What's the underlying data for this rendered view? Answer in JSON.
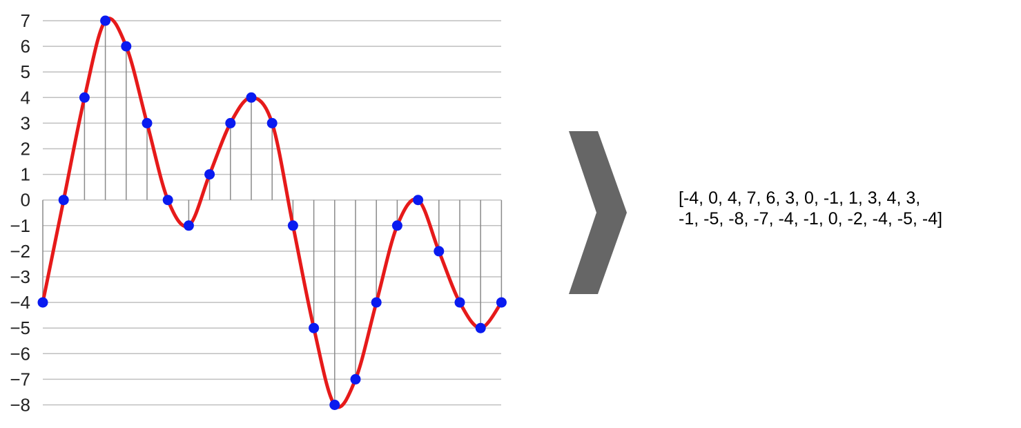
{
  "chart_data": {
    "type": "line",
    "y_ticks": [
      "7",
      "6",
      "5",
      "4",
      "3",
      "2",
      "1",
      "0",
      "−1",
      "−2",
      "−3",
      "−4",
      "−5",
      "−6",
      "−7",
      "−8"
    ],
    "ylim": [
      -8,
      7
    ],
    "grid": true,
    "samples": [
      -4,
      0,
      4,
      7,
      6,
      3,
      0,
      -1,
      1,
      3,
      4,
      3,
      -1,
      -5,
      -8,
      -7,
      -4,
      -1,
      0,
      -2,
      -4,
      -5,
      -4
    ],
    "colors": {
      "curve": "#e61a1a",
      "points": "#0a1bf0",
      "grid": "#bfbfbf",
      "stems": "#8a8a8a"
    }
  },
  "array_text": {
    "line1": "[-4, 0, 4, 7, 6, 3, 0, -1, 1, 3, 4, 3,",
    "line2": "-1, -5, -8, -7, -4, -1, 0, -2, -4, -5, -4]"
  },
  "arrow": {
    "icon": "chevron-right-icon",
    "color": "#666666"
  }
}
